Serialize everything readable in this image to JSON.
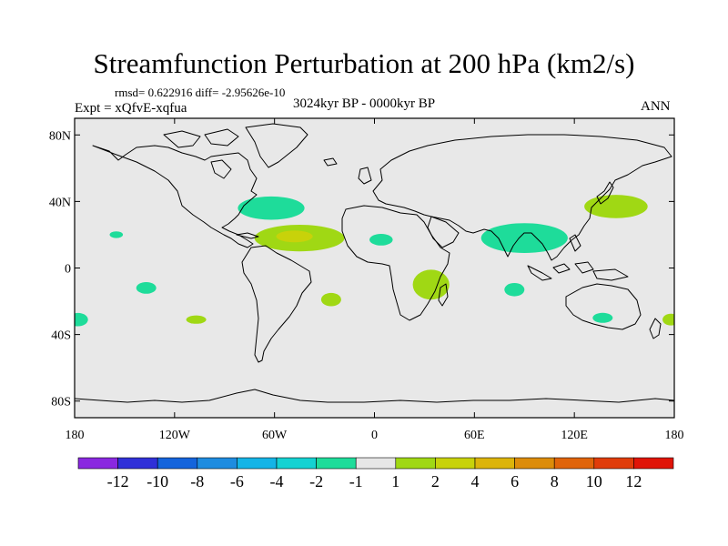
{
  "title": "Streamfunction Perturbation at 200 hPa (km2/s)",
  "stats_line": "rmsd= 0.622916 diff= -2.95626e-10",
  "experiment": "Expt = xQfvE-xqfua",
  "period": "3024kyr BP - 0000kyr BP",
  "season": "ANN",
  "map": {
    "projection": "cylindrical equidistant",
    "lon_range": [
      -180,
      180
    ],
    "lat_range": [
      -90,
      90
    ],
    "background_color": "#e8e8e8",
    "coastline_color": "#000000",
    "lat_ticks": [
      {
        "lat": 80,
        "label": "80N"
      },
      {
        "lat": 40,
        "label": "40N"
      },
      {
        "lat": 0,
        "label": "0"
      },
      {
        "lat": -40,
        "label": "40S"
      },
      {
        "lat": -80,
        "label": "80S"
      }
    ],
    "lon_ticks": [
      {
        "lon": -180,
        "label": "180"
      },
      {
        "lon": -120,
        "label": "120W"
      },
      {
        "lon": -60,
        "label": "60W"
      },
      {
        "lon": 0,
        "label": "0"
      },
      {
        "lon": 60,
        "label": "60E"
      },
      {
        "lon": 120,
        "label": "120E"
      },
      {
        "lon": 180,
        "label": "180"
      }
    ]
  },
  "chart_data": {
    "type": "heatmap",
    "variable": "Streamfunction Perturbation at 200 hPa",
    "units": "km2/s",
    "contour_levels": [
      -12,
      -10,
      -8,
      -6,
      -4,
      -2,
      -1,
      1,
      2,
      4,
      6,
      8,
      10,
      12
    ],
    "colors": [
      "#8a28e0",
      "#3030d8",
      "#1464dc",
      "#1e8ce0",
      "#14b4e6",
      "#14d2d2",
      "#1edc9a",
      "#e6e6e6",
      "#a0d814",
      "#c8d20a",
      "#dcb40a",
      "#dc8c0a",
      "#e0640a",
      "#e03c0a",
      "#e01408"
    ],
    "features": [
      {
        "name": "North Atlantic negative",
        "lon": -62,
        "lat": 36,
        "half_width_deg": 20,
        "half_height_deg": 7,
        "value": -1.5
      },
      {
        "name": "Tropical Atlantic positive",
        "lon": -45,
        "lat": 18,
        "half_width_deg": 27,
        "half_height_deg": 8,
        "value": 1.5
      },
      {
        "name": "Tropical Atlantic positive core",
        "lon": -48,
        "lat": 19,
        "half_width_deg": 11,
        "half_height_deg": 3.5,
        "value": 2.5
      },
      {
        "name": "Central Pacific N negative",
        "lon": -155,
        "lat": 20,
        "half_width_deg": 4,
        "half_height_deg": 2,
        "value": -1.5
      },
      {
        "name": "West African negative",
        "lon": 4,
        "lat": 17,
        "half_width_deg": 7,
        "half_height_deg": 3.5,
        "value": -1.5
      },
      {
        "name": "Asian monsoon negative",
        "lon": 90,
        "lat": 18,
        "half_width_deg": 26,
        "half_height_deg": 9,
        "value": -1.5
      },
      {
        "name": "East Asian jet positive",
        "lon": 145,
        "lat": 37,
        "half_width_deg": 19,
        "half_height_deg": 7,
        "value": 1.5
      },
      {
        "name": "Southern Africa positive",
        "lon": 34,
        "lat": -10,
        "half_width_deg": 11,
        "half_height_deg": 9,
        "value": 1.5
      },
      {
        "name": "South Atlantic positive",
        "lon": -26,
        "lat": -19,
        "half_width_deg": 6,
        "half_height_deg": 4,
        "value": 1.5
      },
      {
        "name": "East Pacific S negative",
        "lon": -137,
        "lat": -12,
        "half_width_deg": 6,
        "half_height_deg": 3.5,
        "value": -1.5
      },
      {
        "name": "South Pacific positive",
        "lon": -107,
        "lat": -31,
        "half_width_deg": 6,
        "half_height_deg": 2.5,
        "value": 1.5
      },
      {
        "name": "Indian Ocean S negative",
        "lon": 84,
        "lat": -13,
        "half_width_deg": 6,
        "half_height_deg": 4,
        "value": -1.5
      },
      {
        "name": "Australia south negative",
        "lon": 137,
        "lat": -30,
        "half_width_deg": 6,
        "half_height_deg": 3,
        "value": -1.5
      },
      {
        "name": "Dateline south negative",
        "lon": -178,
        "lat": -31,
        "half_width_deg": 6,
        "half_height_deg": 4,
        "value": -1.5
      },
      {
        "name": "Dateline south positive",
        "lon": 178,
        "lat": -31,
        "half_width_deg": 5,
        "half_height_deg": 3.5,
        "value": 1.5
      }
    ]
  },
  "colorbar": {
    "labels": [
      "-12",
      "-10",
      "-8",
      "-6",
      "-4",
      "-2",
      "-1",
      "1",
      "2",
      "4",
      "6",
      "8",
      "10",
      "12"
    ]
  }
}
